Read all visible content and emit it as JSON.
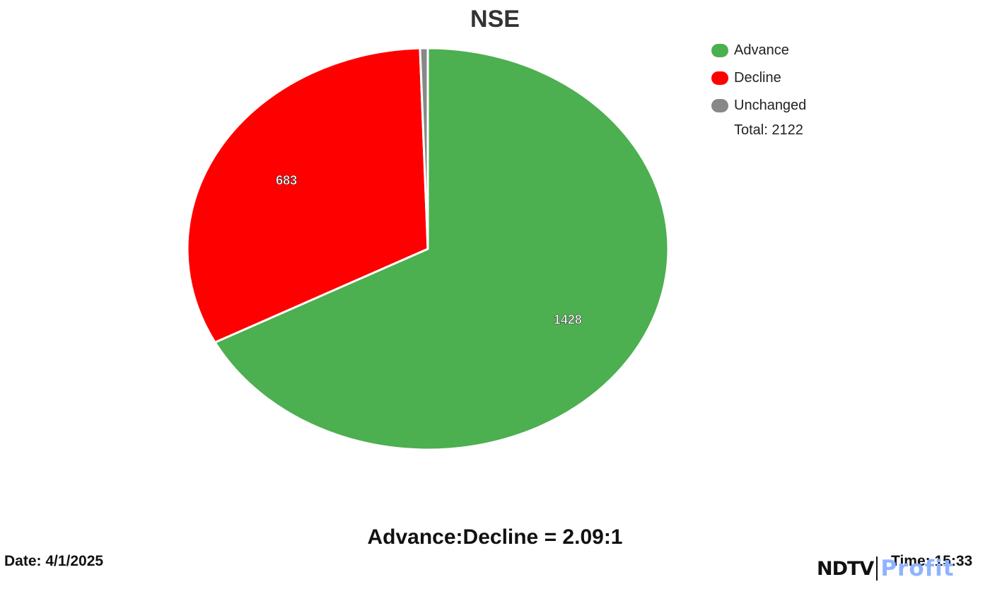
{
  "chart_data": {
    "type": "pie",
    "title": "NSE",
    "categories": [
      "Advance",
      "Decline",
      "Unchanged"
    ],
    "values": [
      1428,
      683,
      11
    ],
    "data_labels": [
      "1428",
      "683",
      ""
    ],
    "colors": [
      "#4caf50",
      "#ff0000",
      "#888888"
    ],
    "legend_position": "top-right",
    "total_label": "Total: 2122"
  },
  "footer": {
    "ratio_text": "Advance:Decline = 2.09:1",
    "date_text": "Date: 4/1/2025",
    "time_text": "Time: 15:33"
  },
  "brand": {
    "ndtv": "NDTV",
    "profit": "Profit"
  }
}
